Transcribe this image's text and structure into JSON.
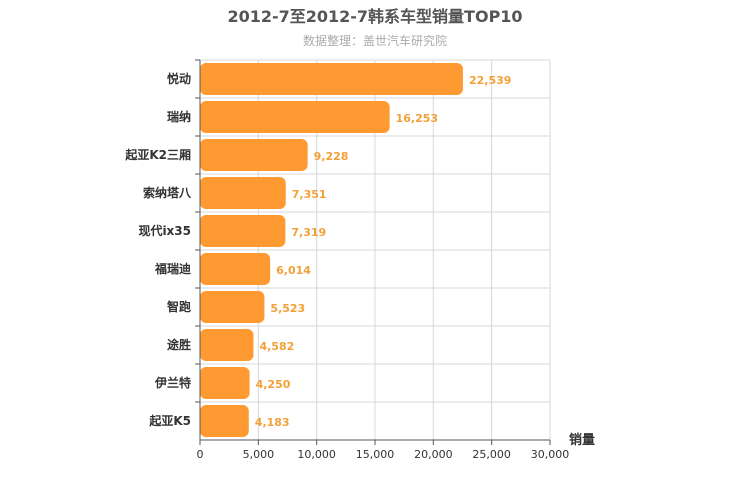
{
  "chart_data": {
    "type": "bar",
    "orientation": "horizontal",
    "title": "2012-7至2012-7韩系车型销量TOP10",
    "subtitle": "数据整理：盖世汽车研究院",
    "categories": [
      "悦动",
      "瑞纳",
      "起亚K2三厢",
      "索纳塔八",
      "现代ix35",
      "福瑞迪",
      "智跑",
      "途胜",
      "伊兰特",
      "起亚K5"
    ],
    "values": [
      22539,
      16253,
      9228,
      7351,
      7319,
      6014,
      5523,
      4582,
      4250,
      4183
    ],
    "value_labels": [
      "22,539",
      "16,253",
      "9,228",
      "7,351",
      "7,319",
      "6,014",
      "5,523",
      "4,582",
      "4,250",
      "4,183"
    ],
    "xlabel": "销量",
    "ylabel": "",
    "xlim": [
      0,
      30000
    ],
    "ticks": [
      0,
      5000,
      10000,
      15000,
      20000,
      25000,
      30000
    ],
    "tick_labels": [
      "0",
      "5,000",
      "10,000",
      "15,000",
      "20,000",
      "25,000",
      "30,000"
    ],
    "grid": true,
    "legend": "none",
    "colors": {
      "bar": "#ff9a33",
      "value_label": "#f3a038",
      "grid": "#d8d8d8",
      "axis": "#555555"
    }
  }
}
